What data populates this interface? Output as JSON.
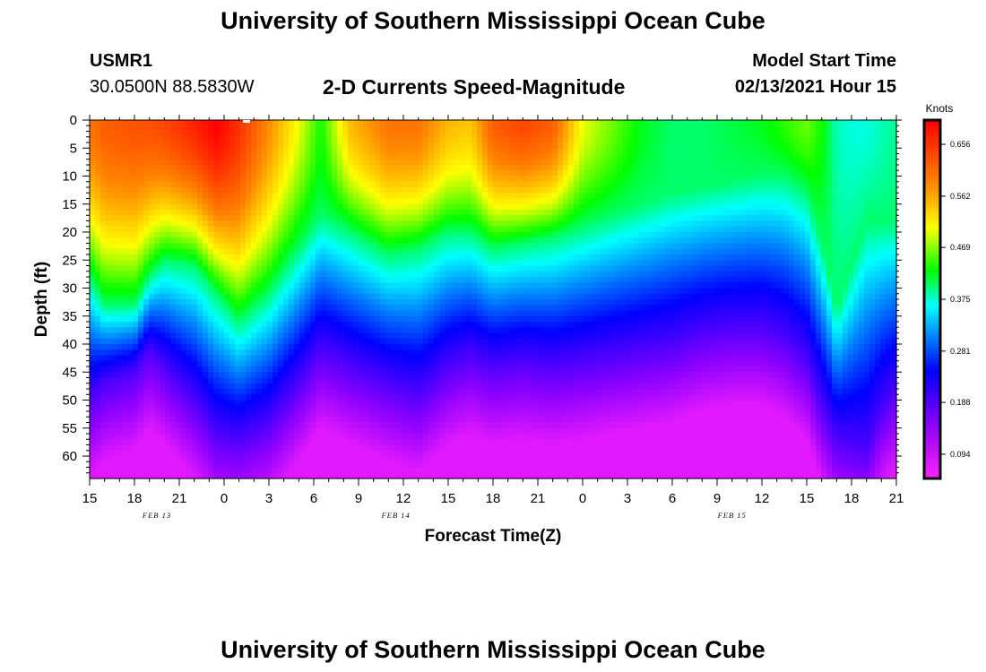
{
  "header": {
    "title": "University of Southern Mississippi Ocean Cube",
    "station": "USMR1",
    "coords": "30.0500N 88.5830W",
    "plot_title": "2-D Currents Speed-Magnitude",
    "model_label": "Model Start Time",
    "model_time": "02/13/2021 Hour 15"
  },
  "footer": {
    "title": "University of Southern Mississippi Ocean Cube"
  },
  "chart_data": {
    "type": "heatmap",
    "title": "2-D Currents Speed-Magnitude",
    "xlabel": "Forecast Time(Z)",
    "ylabel": "Depth (ft)",
    "x_hours": [
      0,
      3,
      6,
      9,
      12,
      15,
      18,
      21,
      24,
      27,
      30,
      33,
      36,
      39,
      42,
      45,
      48,
      51,
      54
    ],
    "x_tick_labels": [
      "15",
      "18",
      "21",
      "0",
      "3",
      "6",
      "9",
      "12",
      "15",
      "18",
      "21",
      "0",
      "3",
      "6",
      "9",
      "12",
      "15",
      "18",
      "21"
    ],
    "date_labels": [
      {
        "hour": 4.5,
        "text": "FEB 13"
      },
      {
        "hour": 20.5,
        "text": "FEB 14"
      },
      {
        "hour": 43,
        "text": "FEB 15"
      }
    ],
    "y_ticks": [
      0,
      5,
      10,
      15,
      20,
      25,
      30,
      35,
      40,
      45,
      50,
      55,
      60
    ],
    "y_tick_labels": [
      "0",
      "5",
      "10",
      "15",
      "20",
      "25",
      "30",
      "35",
      "40",
      "45",
      "50",
      "55",
      "60"
    ],
    "xlim": [
      0,
      54
    ],
    "ylim": [
      0,
      64
    ],
    "colorbar": {
      "unit": "Knots",
      "range": [
        0.05,
        0.7
      ],
      "tick_values": [
        0.656,
        0.562,
        0.469,
        0.375,
        0.281,
        0.188,
        0.094
      ],
      "tick_labels": [
        "0.656",
        "0.562",
        "0.469",
        "0.375",
        "0.281",
        "0.188",
        "0.094"
      ]
    },
    "profile_hours": [
      0,
      1,
      3,
      4,
      5,
      7,
      8.5,
      10,
      12,
      14,
      15.5,
      17.5,
      20,
      22,
      24,
      25.5,
      27,
      29,
      31,
      33,
      35,
      37,
      39,
      41,
      43,
      45,
      46.5,
      48,
      49,
      50,
      51,
      52,
      53,
      54
    ],
    "surface_speed": [
      0.6,
      0.62,
      0.63,
      0.63,
      0.64,
      0.67,
      0.7,
      0.66,
      0.58,
      0.5,
      0.43,
      0.55,
      0.6,
      0.6,
      0.55,
      0.54,
      0.62,
      0.64,
      0.62,
      0.5,
      0.46,
      0.42,
      0.4,
      0.4,
      0.41,
      0.42,
      0.44,
      0.46,
      0.43,
      0.38,
      0.37,
      0.37,
      0.38,
      0.39
    ],
    "green_depth_ft": [
      28,
      33,
      33,
      28,
      25,
      26,
      31,
      36,
      31,
      23,
      17,
      20,
      24,
      23,
      20,
      20,
      23,
      22,
      21,
      19,
      17,
      15,
      13,
      12,
      11,
      10,
      10,
      13,
      22,
      34,
      26,
      18,
      18,
      18
    ],
    "blue_depth_ft": [
      50,
      47,
      45,
      41,
      44,
      50,
      56,
      57,
      54,
      47,
      41,
      44,
      47,
      49,
      44,
      42,
      44,
      43,
      44,
      43,
      42,
      41,
      40,
      38,
      37,
      37,
      39,
      43,
      51,
      57,
      58,
      59,
      52,
      48
    ]
  }
}
